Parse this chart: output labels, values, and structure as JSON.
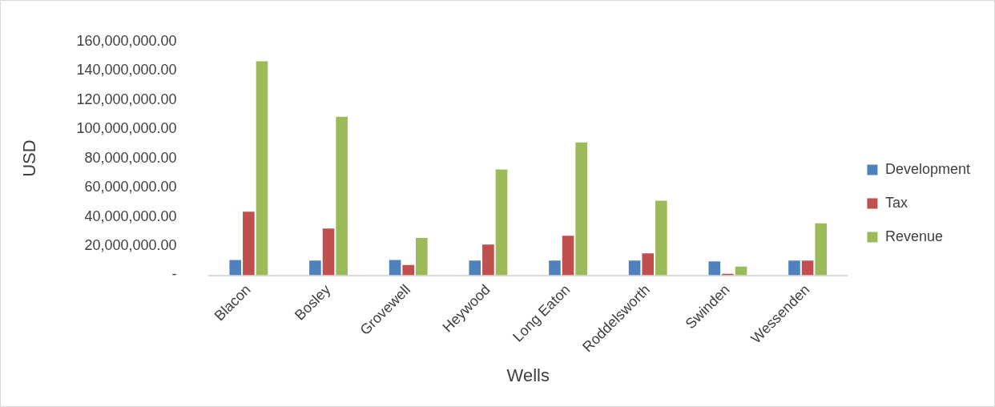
{
  "chart_data": {
    "type": "bar",
    "xlabel": "Wells",
    "ylabel": "USD",
    "categories": [
      "Blacon",
      "Bosley",
      "Grovewell",
      "Heywood",
      "Long Eaton",
      "Roddelsworth",
      "Swinden",
      "Wessenden"
    ],
    "series": [
      {
        "name": "Development",
        "color": "#4f81bd",
        "values": [
          11000000,
          10500000,
          11000000,
          10500000,
          10500000,
          10500000,
          10000000,
          10500000
        ]
      },
      {
        "name": "Tax",
        "color": "#c0504d",
        "values": [
          44000000,
          32500000,
          7500000,
          21500000,
          27500000,
          15500000,
          1500000,
          10500000
        ]
      },
      {
        "name": "Revenue",
        "color": "#9bbb59",
        "values": [
          147000000,
          109000000,
          26000000,
          73000000,
          91500000,
          51500000,
          6500000,
          36000000
        ]
      }
    ],
    "ylim": [
      0,
      160000000
    ],
    "yticks": [
      {
        "value": 0,
        "label": "-"
      },
      {
        "value": 20000000,
        "label": "20,000,000.00"
      },
      {
        "value": 40000000,
        "label": "40,000,000.00"
      },
      {
        "value": 60000000,
        "label": "60,000,000.00"
      },
      {
        "value": 80000000,
        "label": "80,000,000.00"
      },
      {
        "value": 100000000,
        "label": "100,000,000.00"
      },
      {
        "value": 120000000,
        "label": "120,000,000.00"
      },
      {
        "value": 140000000,
        "label": "140,000,000.00"
      },
      {
        "value": 160000000,
        "label": "160,000,000.00"
      }
    ],
    "grid": false,
    "legend": "right"
  }
}
